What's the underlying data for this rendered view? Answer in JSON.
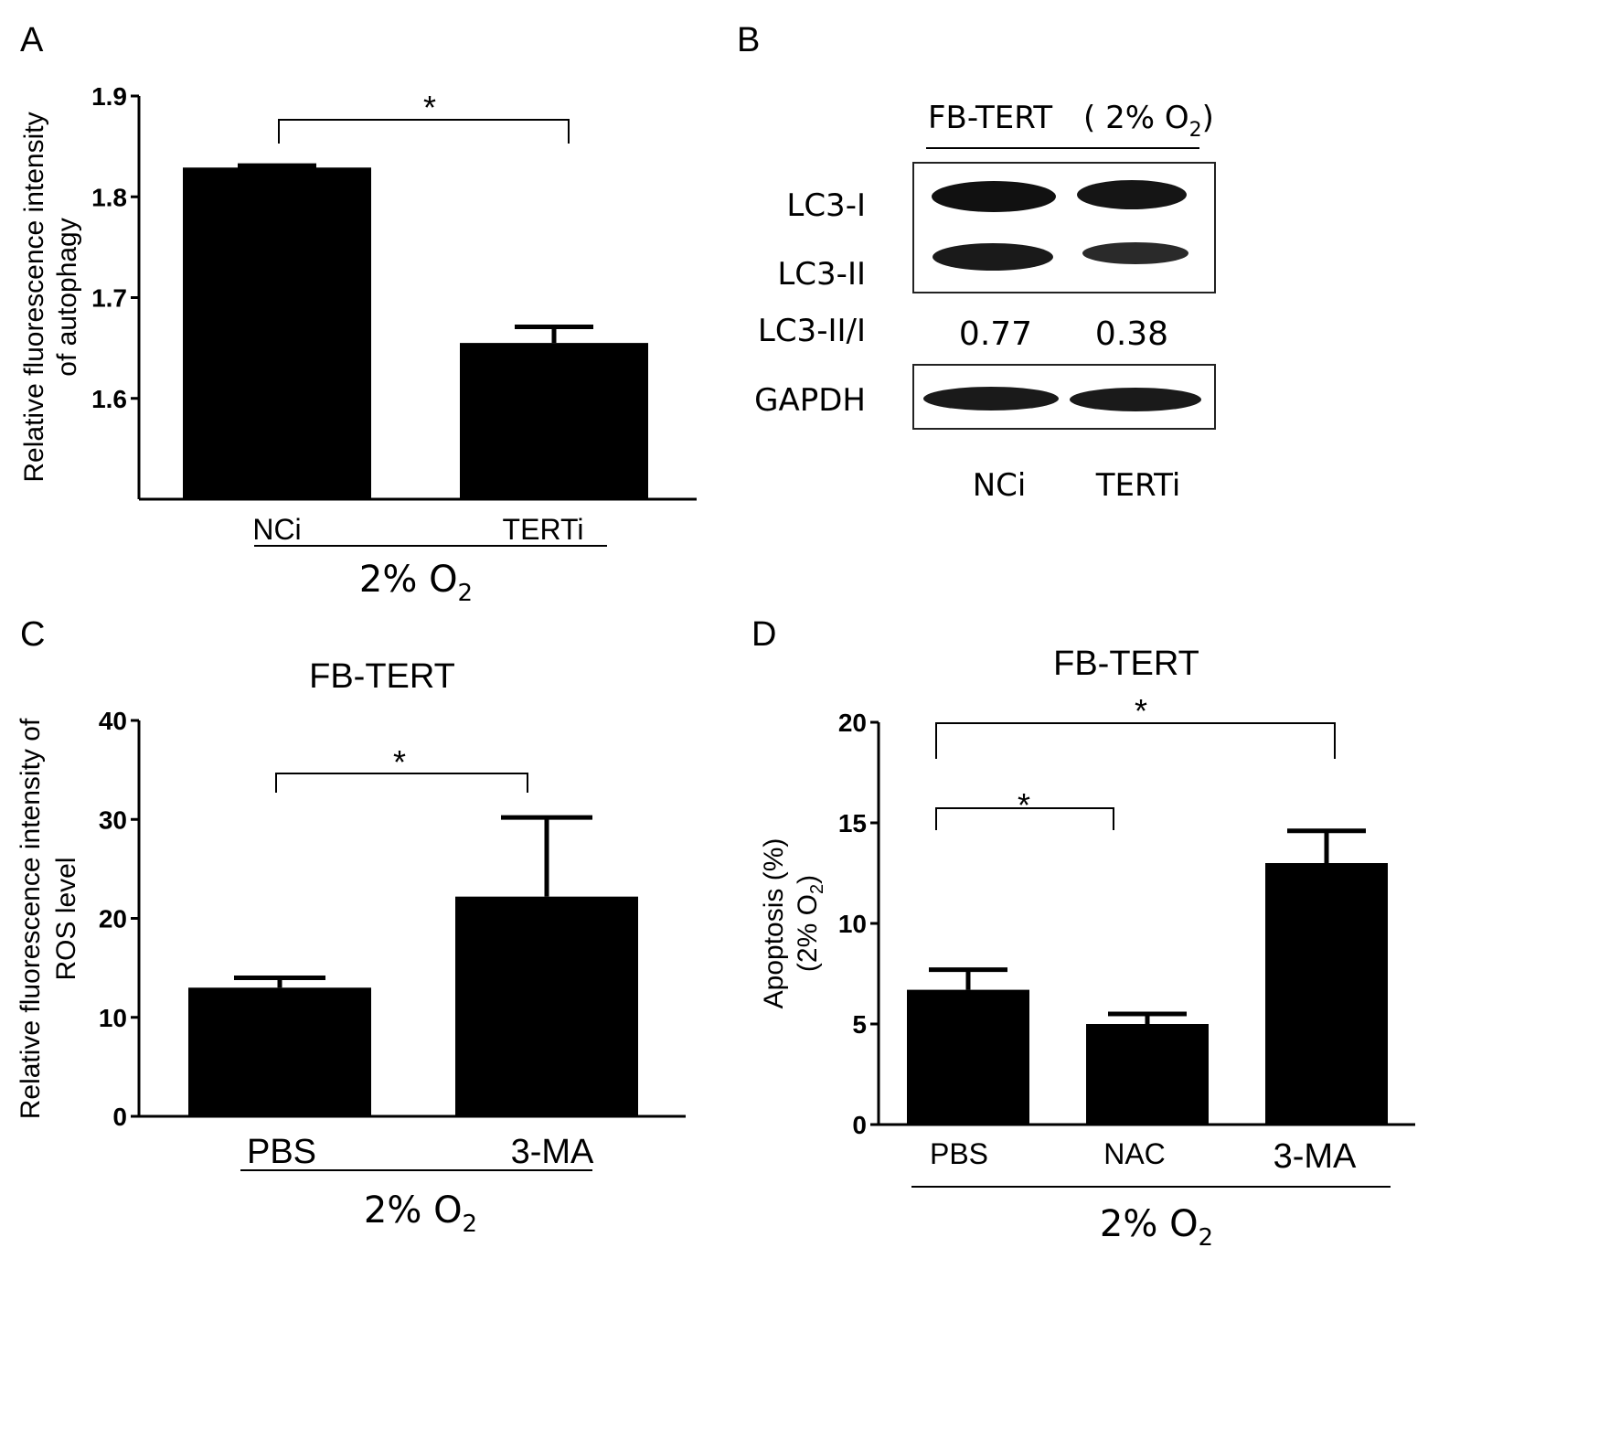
{
  "panels": {
    "A": {
      "letter": "A",
      "sig": "*",
      "condition": "2% O",
      "condition_sub": "2"
    },
    "B": {
      "letter": "B",
      "header_left": "FB-TERT",
      "header_right": "( 2% O",
      "header_right_sub": "2",
      "header_right_close": ")",
      "rows": [
        "LC3-I",
        "LC3-II",
        "LC3-II/I",
        "GAPDH"
      ],
      "ratios": [
        "0.77",
        "0.38"
      ],
      "lanes": [
        "NCi",
        "TERTi"
      ]
    },
    "C": {
      "letter": "C",
      "title": "FB-TERT",
      "sig": "*",
      "condition": "2% O",
      "condition_sub": "2"
    },
    "D": {
      "letter": "D",
      "title": "FB-TERT",
      "sig1": "*",
      "sig2": "*",
      "condition": "2% O",
      "condition_sub": "2"
    }
  },
  "chart_data": [
    {
      "panel": "A",
      "type": "bar",
      "categories": [
        "NCi",
        "TERTi"
      ],
      "values": [
        1.829,
        1.655
      ],
      "errors": [
        0.002,
        0.016
      ],
      "ylabel_line1": "Relative fluorescence intensity",
      "ylabel_line2": "of  autophagy",
      "ylim": [
        1.5,
        1.9
      ],
      "yticks": [
        "1.6",
        "1.7",
        "1.8",
        "1.9"
      ],
      "ytick_values": [
        1.6,
        1.7,
        1.8,
        1.9
      ],
      "grid": false,
      "bar_color": "#000000"
    },
    {
      "panel": "C",
      "type": "bar",
      "categories": [
        "PBS",
        "3-MA"
      ],
      "values": [
        13.0,
        22.2
      ],
      "errors": [
        1.0,
        8.0
      ],
      "ylabel_line1": "Relative fluorescence intensity of",
      "ylabel_line2": "ROS level",
      "ylim": [
        0,
        40
      ],
      "yticks": [
        "0",
        "10",
        "20",
        "30",
        "40"
      ],
      "ytick_values": [
        0,
        10,
        20,
        30,
        40
      ],
      "grid": false,
      "bar_color": "#000000"
    },
    {
      "panel": "D",
      "type": "bar",
      "categories": [
        "PBS",
        "NAC",
        "3-MA"
      ],
      "values": [
        6.7,
        5.0,
        13.0
      ],
      "errors": [
        1.0,
        0.5,
        1.6
      ],
      "ylabel_line1": "Apoptosis (%)",
      "ylabel_line2": "(2% O",
      "ylabel_line2_sub": "2",
      "ylabel_line2_close": ")",
      "ylim": [
        0,
        20
      ],
      "yticks": [
        "0",
        "5",
        "10",
        "15",
        "20"
      ],
      "ytick_values": [
        0,
        5,
        10,
        15,
        20
      ],
      "grid": false,
      "bar_color": "#000000"
    }
  ]
}
